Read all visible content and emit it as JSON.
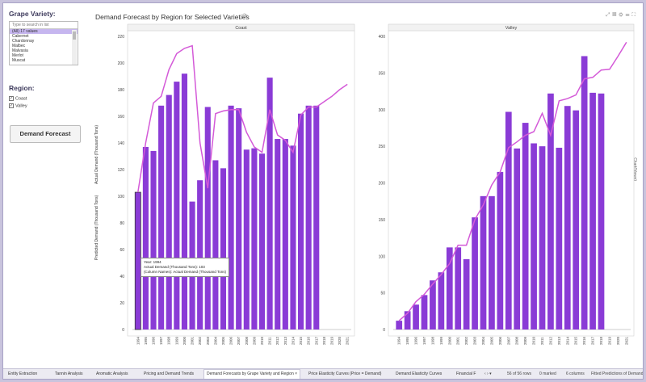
{
  "sidebar": {
    "grape_title": "Grape Variety:",
    "search_placeholder": "Type to search in list",
    "options": [
      "(All) 17 values",
      "Cabernet",
      "Chardonnay",
      "Malbec",
      "Malvasia",
      "Merlot",
      "Muscat"
    ],
    "region_title": "Region:",
    "regions": [
      {
        "label": "Coast",
        "checked": true
      },
      {
        "label": "Valley",
        "checked": true
      }
    ],
    "button_label": "Demand Forecast"
  },
  "header": {
    "title": "Demand Forecast by Region for Selected Varieties",
    "refresh_icon": "refresh-icon",
    "tool_icons": [
      "expand-icon",
      "export-icon",
      "settings-icon",
      "menu-icon",
      "fullscreen-icon"
    ]
  },
  "axis_legend": {
    "actual": "Actual Demand (Thousand Tons)",
    "predicted": "Predicted Demand (Thousand Tons)"
  },
  "right_label": "Chart(Views)",
  "tooltip": {
    "line1": "Year: 1994",
    "line2": "Actual Demand (Thousand Tons): 103",
    "line3": "(Column Names): Actual Demand (Thousand Tons)"
  },
  "colors": {
    "bar": "#8a3bd6",
    "line": "#d45ad8",
    "accent": "#c6b6ef"
  },
  "chart_data": [
    {
      "type": "bar",
      "title": "Coast",
      "x": [
        "1994",
        "1995",
        "1996",
        "1997",
        "1998",
        "1999",
        "2000",
        "2001",
        "2002",
        "2003",
        "2004",
        "2005",
        "2006",
        "2007",
        "2008",
        "2009",
        "2010",
        "2011",
        "2012",
        "2013",
        "2014",
        "2015",
        "2016",
        "2017",
        "2018",
        "2019",
        "2020",
        "2021"
      ],
      "series": [
        {
          "values": [
            103,
            137,
            134,
            168,
            176,
            186,
            192,
            96,
            112,
            167,
            127,
            121,
            168,
            166,
            135,
            136,
            132,
            189,
            143,
            143,
            138,
            162,
            168,
            168,
            null,
            null,
            null,
            null
          ]
        },
        {
          "values": [
            103,
            140,
            170,
            175,
            195,
            207,
            211,
            213,
            140,
            106,
            162,
            164,
            165,
            165,
            148,
            137,
            133,
            165,
            146,
            142,
            133,
            161,
            167,
            167,
            171,
            175,
            180,
            184
          ]
        }
      ],
      "ylim": [
        0,
        220
      ],
      "yticks": [
        0,
        20,
        40,
        60,
        80,
        100,
        120,
        140,
        160,
        180,
        200,
        220
      ]
    },
    {
      "type": "bar",
      "title": "Valley",
      "x": [
        "1994",
        "1995",
        "1996",
        "1997",
        "1998",
        "1999",
        "2000",
        "2001",
        "2002",
        "2003",
        "2004",
        "2005",
        "2006",
        "2007",
        "2008",
        "2009",
        "2010",
        "2011",
        "2012",
        "2013",
        "2014",
        "2015",
        "2016",
        "2017",
        "2018",
        "2019",
        "2020",
        "2021"
      ],
      "series": [
        {
          "values": [
            12,
            25,
            34,
            47,
            67,
            78,
            112,
            112,
            96,
            153,
            182,
            182,
            215,
            297,
            247,
            282,
            254,
            250,
            322,
            248,
            305,
            299,
            373,
            323,
            322,
            null,
            null,
            null
          ]
        },
        {
          "values": [
            12,
            22,
            38,
            48,
            62,
            75,
            90,
            115,
            115,
            150,
            170,
            197,
            215,
            248,
            256,
            265,
            270,
            295,
            265,
            312,
            315,
            320,
            342,
            344,
            354,
            355,
            373,
            392
          ]
        }
      ],
      "ylim": [
        0,
        400
      ],
      "yticks": [
        0,
        50,
        100,
        150,
        200,
        250,
        300,
        350,
        400
      ]
    }
  ],
  "tabs": [
    {
      "label": "Entity Extraction",
      "active": false
    },
    {
      "label": "Tannin Analysis",
      "active": false
    },
    {
      "label": "Aromatic Analysis",
      "active": false
    },
    {
      "label": "Pricing and Demand Trends",
      "active": false
    },
    {
      "label": "Demand Forecasts by Grape Variety and Region",
      "active": true
    },
    {
      "label": "Price Elasticity Curves (Price = Demand)",
      "active": false
    },
    {
      "label": "Demand Elasticity Curves",
      "active": false
    },
    {
      "label": "Financial F",
      "active": false
    }
  ],
  "status": {
    "rows": "56 of 56 rows",
    "marked": "0 marked",
    "columns": "6 columns",
    "table": "Fitted Predictions of Demand"
  }
}
